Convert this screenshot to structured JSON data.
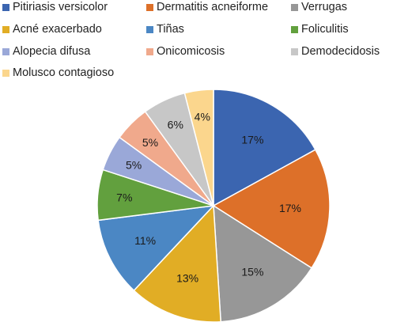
{
  "chart_data": {
    "type": "pie",
    "title": "",
    "legend_position": "top",
    "slices": [
      {
        "label": "Pitiriasis versicolor",
        "value": 17,
        "display": "17%",
        "color": "#3b65b0"
      },
      {
        "label": "Dermatitis acneiforme",
        "value": 17,
        "display": "17%",
        "color": "#dd7029"
      },
      {
        "label": "Verrugas",
        "value": 15,
        "display": "15%",
        "color": "#979797"
      },
      {
        "label": "Acné exacerbado",
        "value": 13,
        "display": "13%",
        "color": "#e1ad25"
      },
      {
        "label": "Tiñas",
        "value": 11,
        "display": "11%",
        "color": "#4b87c4"
      },
      {
        "label": "Foliculitis",
        "value": 7,
        "display": "7%",
        "color": "#62a03e"
      },
      {
        "label": "Alopecia difusa",
        "value": 5,
        "display": "5%",
        "color": "#9aa8d8"
      },
      {
        "label": "Onicomicosis",
        "value": 5,
        "display": "5%",
        "color": "#f0a98c"
      },
      {
        "label": "Demodecidosis",
        "value": 6,
        "display": "6%",
        "color": "#c7c7c7"
      },
      {
        "label": "Molusco contagioso",
        "value": 4,
        "display": "4%",
        "color": "#fbd68d"
      }
    ]
  }
}
